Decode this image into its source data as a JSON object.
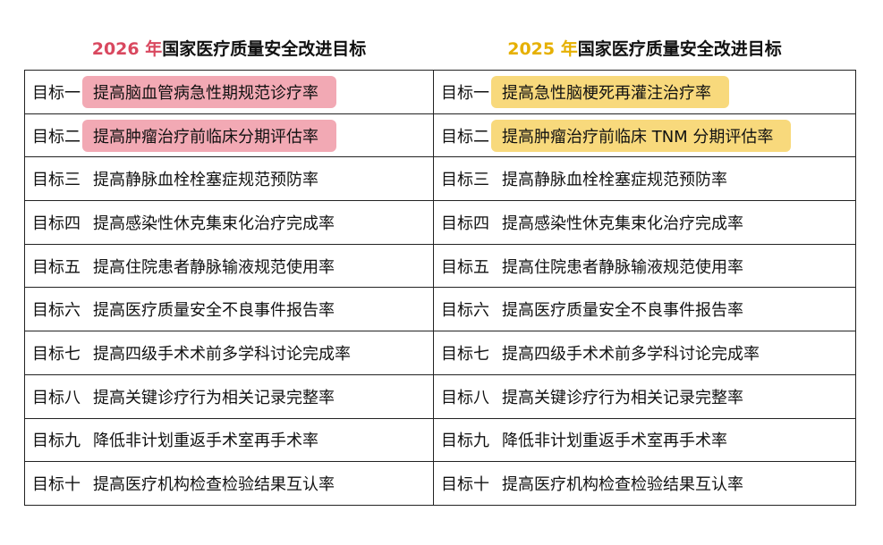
{
  "tables": [
    {
      "year": "2026 年",
      "title": "国家医疗质量安全改进目标",
      "year_color": "#d9485f",
      "highlight_color": "#f2a9b4",
      "rows": [
        {
          "label": "目标一",
          "text": "提高脑血管病急性期规范诊疗率",
          "highlighted": true
        },
        {
          "label": "目标二",
          "text": "提高肿瘤治疗前临床分期评估率",
          "highlighted": true
        },
        {
          "label": "目标三",
          "text": "提高静脉血栓栓塞症规范预防率",
          "highlighted": false
        },
        {
          "label": "目标四",
          "text": "提高感染性休克集束化治疗完成率",
          "highlighted": false
        },
        {
          "label": "目标五",
          "text": "提高住院患者静脉输液规范使用率",
          "highlighted": false
        },
        {
          "label": "目标六",
          "text": "提高医疗质量安全不良事件报告率",
          "highlighted": false
        },
        {
          "label": "目标七",
          "text": "提高四级手术术前多学科讨论完成率",
          "highlighted": false
        },
        {
          "label": "目标八",
          "text": "提高关键诊疗行为相关记录完整率",
          "highlighted": false
        },
        {
          "label": "目标九",
          "text": "降低非计划重返手术室再手术率",
          "highlighted": false
        },
        {
          "label": "目标十",
          "text": "提高医疗机构检查检验结果互认率",
          "highlighted": false
        }
      ]
    },
    {
      "year": "2025 年",
      "title": "国家医疗质量安全改进目标",
      "year_color": "#e6b000",
      "highlight_color": "#f8d97c",
      "rows": [
        {
          "label": "目标一",
          "text": "提高急性脑梗死再灌注治疗率",
          "highlighted": true
        },
        {
          "label": "目标二",
          "text": "提高肿瘤治疗前临床 TNM 分期评估率",
          "highlighted": true
        },
        {
          "label": "目标三",
          "text": "提高静脉血栓栓塞症规范预防率",
          "highlighted": false
        },
        {
          "label": "目标四",
          "text": "提高感染性休克集束化治疗完成率",
          "highlighted": false
        },
        {
          "label": "目标五",
          "text": "提高住院患者静脉输液规范使用率",
          "highlighted": false
        },
        {
          "label": "目标六",
          "text": "提高医疗质量安全不良事件报告率",
          "highlighted": false
        },
        {
          "label": "目标七",
          "text": "提高四级手术术前多学科讨论完成率",
          "highlighted": false
        },
        {
          "label": "目标八",
          "text": "提高关键诊疗行为相关记录完整率",
          "highlighted": false
        },
        {
          "label": "目标九",
          "text": "降低非计划重返手术室再手术率",
          "highlighted": false
        },
        {
          "label": "目标十",
          "text": "提高医疗机构检查检验结果互认率",
          "highlighted": false
        }
      ]
    }
  ]
}
